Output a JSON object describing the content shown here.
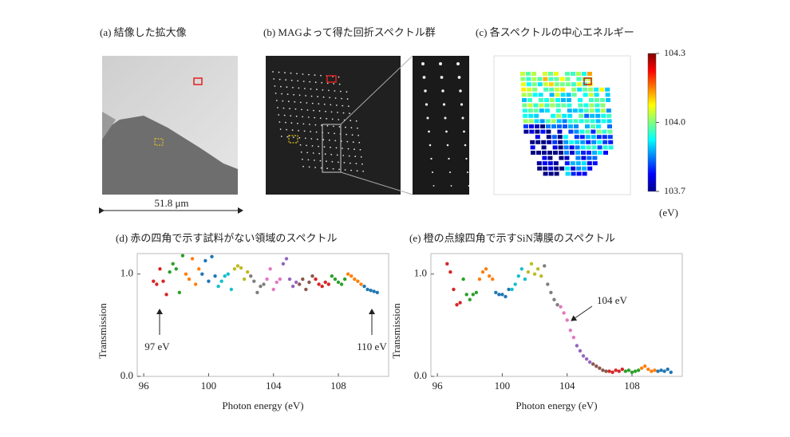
{
  "panels": {
    "a": {
      "caption": "(a)  結像した拡大像",
      "scale_bar": "51.8 μm"
    },
    "b": {
      "caption": "(b)  MAGよって得た回折スペクトル群"
    },
    "c": {
      "caption": "(c)    各スペクトルの中心エネルギー",
      "colorbar": {
        "lim": [
          103.7,
          104.3
        ],
        "ticks": [
          104.3,
          {
            "value": 104,
            "label": "104.0"
          },
          103.7
        ],
        "unit": "(eV)"
      }
    }
  },
  "chart_data": [
    {
      "type": "scatter",
      "title": "(d) 赤の四角で示す試料がない領域のスペクトル",
      "xlabel": "Photon energy (eV)",
      "ylabel": "Transmission",
      "xlim": [
        95.6,
        111.1
      ],
      "ylim": [
        0,
        1.2
      ],
      "xticks": [
        96,
        100,
        104,
        108
      ],
      "yticks": [
        {
          "value": 0,
          "label": "0.0"
        },
        {
          "value": 1,
          "label": "1.0"
        }
      ],
      "annotations": [
        "97 eV",
        "110 eV"
      ],
      "series": [
        {
          "color": "#d62728",
          "x": [
            96.6,
            96.8,
            97.0,
            97.2,
            97.4
          ],
          "values": [
            0.93,
            0.9,
            1.05,
            0.93,
            0.8
          ]
        },
        {
          "color": "#2ca02c",
          "x": [
            97.6,
            97.8,
            98.0,
            98.2,
            98.4
          ],
          "values": [
            1.02,
            1.1,
            1.05,
            0.82,
            1.18
          ]
        },
        {
          "color": "#ff7f0e",
          "x": [
            98.6,
            98.8,
            99.0,
            99.2,
            99.4
          ],
          "values": [
            1.0,
            0.95,
            1.15,
            0.9,
            1.05
          ]
        },
        {
          "color": "#1f77b4",
          "x": [
            99.6,
            99.8,
            100.0,
            100.2,
            100.4
          ],
          "values": [
            1.0,
            1.13,
            0.93,
            1.17,
            0.98
          ]
        },
        {
          "color": "#17becf",
          "x": [
            100.6,
            100.8,
            101.0,
            101.2,
            101.4
          ],
          "values": [
            0.88,
            0.93,
            0.98,
            1.0,
            0.85
          ]
        },
        {
          "color": "#bcbd22",
          "x": [
            101.6,
            101.8,
            102.0,
            102.2,
            102.4
          ],
          "values": [
            1.05,
            1.08,
            1.06,
            0.95,
            1.02
          ]
        },
        {
          "color": "#7f7f7f",
          "x": [
            102.6,
            102.8,
            103.0,
            103.2,
            103.4
          ],
          "values": [
            0.98,
            0.93,
            0.82,
            0.88,
            0.9
          ]
        },
        {
          "color": "#e377c2",
          "x": [
            103.6,
            103.8,
            104.0,
            104.2,
            104.4
          ],
          "values": [
            0.95,
            1.05,
            0.85,
            0.92,
            0.95
          ]
        },
        {
          "color": "#9467bd",
          "x": [
            104.6,
            104.8,
            105.0,
            105.2,
            105.4
          ],
          "values": [
            1.1,
            1.15,
            0.95,
            0.88,
            0.92
          ]
        },
        {
          "color": "#8c564b",
          "x": [
            105.6,
            105.8,
            106.0,
            106.2,
            106.4
          ],
          "values": [
            0.9,
            0.95,
            0.85,
            0.92,
            0.98
          ]
        },
        {
          "color": "#d62728",
          "x": [
            106.6,
            106.8,
            107.0,
            107.2,
            107.4
          ],
          "values": [
            0.95,
            0.9,
            0.88,
            0.92,
            0.9
          ]
        },
        {
          "color": "#2ca02c",
          "x": [
            107.6,
            107.8,
            108.0,
            108.2,
            108.4
          ],
          "values": [
            0.98,
            0.95,
            0.92,
            0.9,
            0.95
          ]
        },
        {
          "color": "#ff7f0e",
          "x": [
            108.6,
            108.8,
            109.0,
            109.2,
            109.4
          ],
          "values": [
            1.0,
            0.98,
            0.95,
            0.93,
            0.9
          ]
        },
        {
          "color": "#1f77b4",
          "x": [
            109.6,
            109.8,
            110.0,
            110.2,
            110.4
          ],
          "values": [
            0.88,
            0.85,
            0.84,
            0.83,
            0.82
          ]
        }
      ]
    },
    {
      "type": "scatter",
      "title": "(e) 橙の点線四角で示すSiN薄膜のスペクトル",
      "xlabel": "Photon energy (eV)",
      "ylabel": "Transmission",
      "xlim": [
        95.6,
        111.1
      ],
      "ylim": [
        0,
        1.2
      ],
      "xticks": [
        96,
        100,
        104,
        108
      ],
      "yticks": [
        {
          "value": 0,
          "label": "0.0"
        },
        {
          "value": 1,
          "label": "1.0"
        }
      ],
      "annotations": [
        "104 eV"
      ],
      "series": [
        {
          "color": "#d62728",
          "x": [
            96.6,
            96.8,
            97.0,
            97.2,
            97.4
          ],
          "values": [
            1.1,
            1.02,
            0.85,
            0.7,
            0.72
          ]
        },
        {
          "color": "#2ca02c",
          "x": [
            97.6,
            97.8,
            98.0,
            98.2,
            98.4
          ],
          "values": [
            0.95,
            0.8,
            0.75,
            0.8,
            0.82
          ]
        },
        {
          "color": "#ff7f0e",
          "x": [
            98.6,
            98.8,
            99.0,
            99.2,
            99.4
          ],
          "values": [
            0.95,
            1.02,
            1.05,
            0.98,
            0.95
          ]
        },
        {
          "color": "#1f77b4",
          "x": [
            99.6,
            99.8,
            100.0,
            100.2,
            100.4
          ],
          "values": [
            0.82,
            0.8,
            0.8,
            0.78,
            0.85
          ]
        },
        {
          "color": "#17becf",
          "x": [
            100.6,
            100.8,
            101.0,
            101.2,
            101.4
          ],
          "values": [
            0.85,
            0.9,
            0.98,
            1.05,
            0.95
          ]
        },
        {
          "color": "#bcbd22",
          "x": [
            101.6,
            101.8,
            102.0,
            102.2,
            102.4
          ],
          "values": [
            1.02,
            1.1,
            1.0,
            1.05,
            0.98
          ]
        },
        {
          "color": "#7f7f7f",
          "x": [
            102.6,
            102.8,
            103.0,
            103.2,
            103.4
          ],
          "values": [
            1.08,
            0.9,
            0.82,
            0.75,
            0.7
          ]
        },
        {
          "color": "#e377c2",
          "x": [
            103.6,
            103.8,
            104.0,
            104.2,
            104.4
          ],
          "values": [
            0.68,
            0.62,
            0.55,
            0.45,
            0.38
          ]
        },
        {
          "color": "#9467bd",
          "x": [
            104.6,
            104.8,
            105.0,
            105.2,
            105.4
          ],
          "values": [
            0.3,
            0.25,
            0.2,
            0.17,
            0.14
          ]
        },
        {
          "color": "#8c564b",
          "x": [
            105.6,
            105.8,
            106.0,
            106.2,
            106.4
          ],
          "values": [
            0.12,
            0.1,
            0.08,
            0.06,
            0.05
          ]
        },
        {
          "color": "#d62728",
          "x": [
            106.6,
            106.8,
            107.0,
            107.2,
            107.4
          ],
          "values": [
            0.05,
            0.04,
            0.06,
            0.05,
            0.07
          ]
        },
        {
          "color": "#2ca02c",
          "x": [
            107.6,
            107.8,
            108.0,
            108.2,
            108.4
          ],
          "values": [
            0.05,
            0.06,
            0.04,
            0.05,
            0.06
          ]
        },
        {
          "color": "#ff7f0e",
          "x": [
            108.6,
            108.8,
            109.0,
            109.2,
            109.4
          ],
          "values": [
            0.08,
            0.1,
            0.07,
            0.05,
            0.06
          ]
        },
        {
          "color": "#1f77b4",
          "x": [
            109.6,
            109.8,
            110.0,
            110.2,
            110.4
          ],
          "values": [
            0.05,
            0.06,
            0.05,
            0.07,
            0.04
          ]
        }
      ]
    }
  ]
}
